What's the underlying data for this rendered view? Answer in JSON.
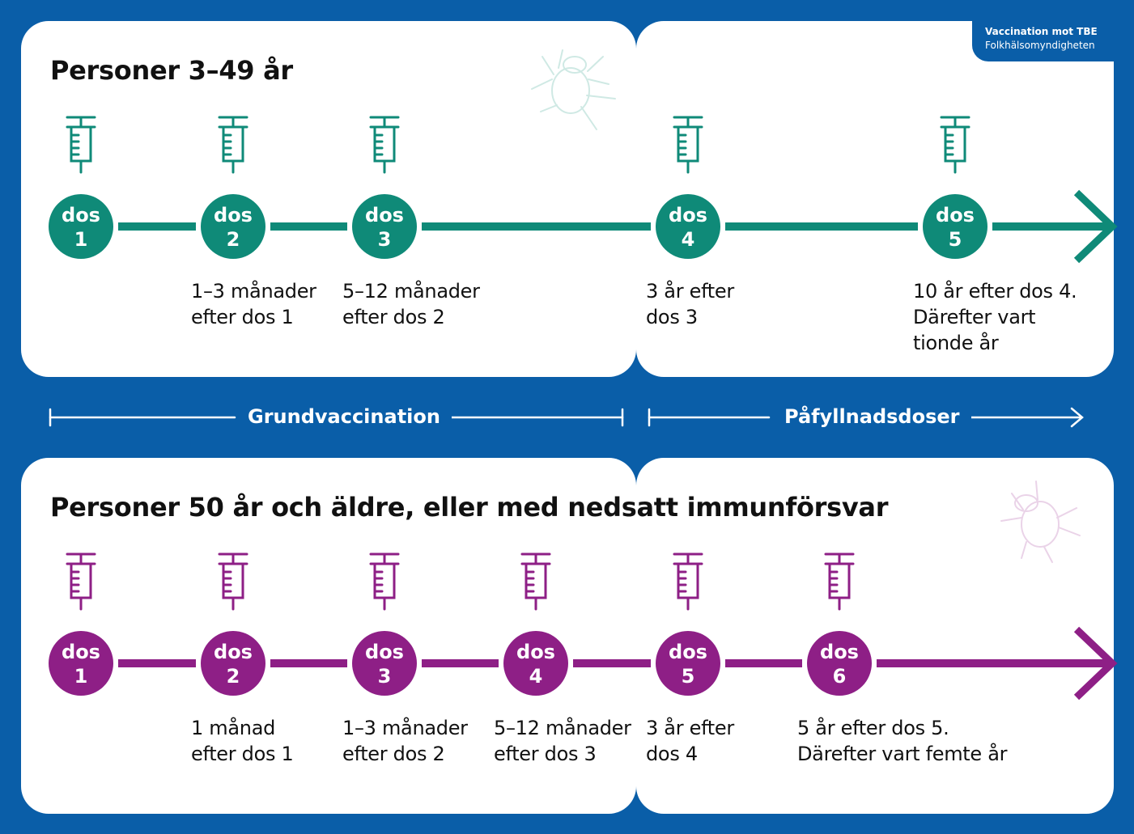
{
  "header": {
    "title": "Vaccination mot TBE",
    "source": "Folkhälsomyndigheten"
  },
  "colors": {
    "background": "#0a5ea8",
    "panel": "#ffffff",
    "teal": "#0f8a78",
    "purple": "#8e1f86",
    "text": "#111111"
  },
  "sections": [
    {
      "title": "Personer 3–49 år",
      "color": "teal",
      "doses": [
        {
          "label": "dos",
          "number": "1",
          "lines": []
        },
        {
          "label": "dos",
          "number": "2",
          "lines": [
            "1–3 månader",
            "efter dos 1"
          ]
        },
        {
          "label": "dos",
          "number": "3",
          "lines": [
            "5–12 månader",
            "efter dos 2"
          ]
        },
        {
          "label": "dos",
          "number": "4",
          "lines": [
            "3 år efter",
            "dos 3"
          ]
        },
        {
          "label": "dos",
          "number": "5",
          "lines": [
            "10 år efter dos 4.",
            "Därefter vart",
            "tionde år"
          ]
        }
      ]
    },
    {
      "title": "Personer 50 år och äldre, eller med nedsatt immunförsvar",
      "color": "purple",
      "doses": [
        {
          "label": "dos",
          "number": "1",
          "lines": []
        },
        {
          "label": "dos",
          "number": "2",
          "lines": [
            "1 månad",
            "efter dos 1"
          ]
        },
        {
          "label": "dos",
          "number": "3",
          "lines": [
            "1–3 månader",
            "efter dos 2"
          ]
        },
        {
          "label": "dos",
          "number": "4",
          "lines": [
            "5–12 månader",
            "efter dos 3"
          ]
        },
        {
          "label": "dos",
          "number": "5",
          "lines": [
            "3 år efter",
            "dos 4"
          ]
        },
        {
          "label": "dos",
          "number": "6",
          "lines": [
            "5 år efter dos 5.",
            "Därefter vart femte år"
          ]
        }
      ]
    }
  ],
  "phases": {
    "primary": "Grundvaccination",
    "booster": "Påfyllnadsdoser"
  }
}
